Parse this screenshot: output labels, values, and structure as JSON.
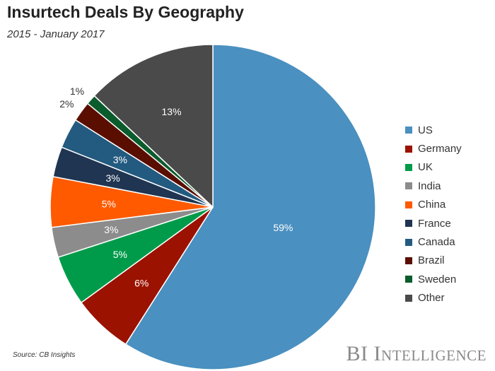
{
  "header": {
    "title": "Insurtech Deals By Geography",
    "subtitle": "2015 - January 2017"
  },
  "footer": {
    "source": "Source: CB Insights",
    "brand": "BI Intelligence"
  },
  "chart_data": {
    "type": "pie",
    "title": "Insurtech Deals By Geography",
    "subtitle": "2015 - January 2017",
    "legend_position": "right",
    "slices": [
      {
        "name": "US",
        "value": 59,
        "label": "59%",
        "color": "#4a90c0"
      },
      {
        "name": "Germany",
        "value": 6,
        "label": "6%",
        "color": "#9b1200"
      },
      {
        "name": "UK",
        "value": 5,
        "label": "5%",
        "color": "#009b4a"
      },
      {
        "name": "India",
        "value": 3,
        "label": "3%",
        "color": "#8c8c8c"
      },
      {
        "name": "China",
        "value": 5,
        "label": "5%",
        "color": "#ff5a00"
      },
      {
        "name": "France",
        "value": 3,
        "label": "3%",
        "color": "#1f3552"
      },
      {
        "name": "Canada",
        "value": 3,
        "label": "3%",
        "color": "#235a80"
      },
      {
        "name": "Brazil",
        "value": 2,
        "label": "2%",
        "color": "#5a0e00"
      },
      {
        "name": "Sweden",
        "value": 1,
        "label": "1%",
        "color": "#0b5c2c"
      },
      {
        "name": "Other",
        "value": 13,
        "label": "13%",
        "color": "#4a4a4a"
      }
    ]
  }
}
